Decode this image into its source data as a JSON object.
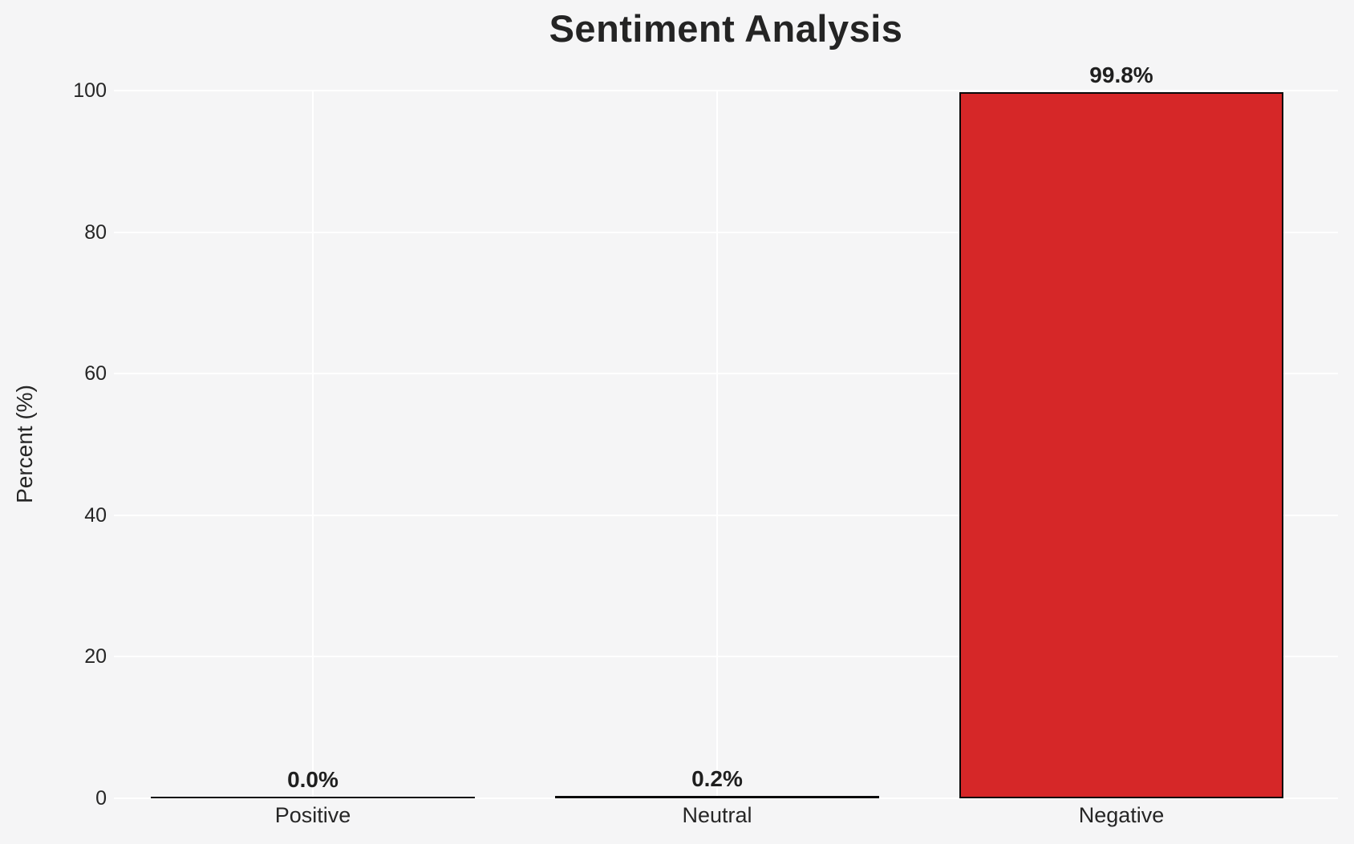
{
  "title": "Sentiment Analysis",
  "chart_data": {
    "type": "bar",
    "title": "Sentiment Analysis",
    "xlabel": "",
    "ylabel": "Percent (%)",
    "categories": [
      "Positive",
      "Neutral",
      "Negative"
    ],
    "values": [
      0.0,
      0.2,
      99.8
    ],
    "value_labels": [
      "0.0%",
      "0.2%",
      "99.8%"
    ],
    "yticks": [
      0,
      20,
      40,
      60,
      80,
      100
    ],
    "ylim": [
      0,
      100
    ],
    "grid": "horizontal and vertical white gridlines",
    "legend": "none",
    "colors": {
      "background": "#f5f5f6",
      "grid": "#ffffff",
      "bar_fill": "#d62728",
      "bar_edge": "#0a0a0a",
      "text": "#262626"
    }
  }
}
